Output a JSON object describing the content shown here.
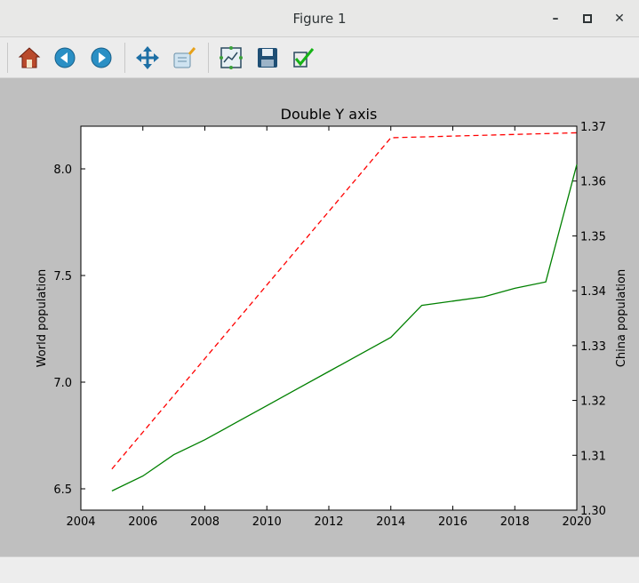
{
  "window": {
    "title": "Figure 1"
  },
  "toolbar": {
    "buttons": [
      "home-icon",
      "back-icon",
      "forward-icon",
      "pan-icon",
      "zoom-icon",
      "configure-subplots-icon",
      "save-icon",
      "edit-axis-icon"
    ]
  },
  "chart_data": {
    "type": "line",
    "title": "Double Y axis",
    "ylabel": "World population",
    "y2label": "China population",
    "xlim": [
      2004,
      2020
    ],
    "ylim": [
      6.4,
      8.2
    ],
    "y2lim": [
      1.3,
      1.37
    ],
    "xticks": [
      "2004",
      "2006",
      "2008",
      "2010",
      "2012",
      "2014",
      "2016",
      "2018",
      "2020"
    ],
    "yticks": [
      "6.5",
      "7.0",
      "7.5",
      "8.0"
    ],
    "y2ticks": [
      "1.30",
      "1.31",
      "1.32",
      "1.33",
      "1.34",
      "1.35",
      "1.36",
      "1.37"
    ],
    "series": [
      {
        "axis": "left",
        "color": "#008000",
        "style": "solid",
        "x": [
          2005,
          2006,
          2007,
          2008,
          2009,
          2010,
          2011,
          2012,
          2013,
          2014,
          2015,
          2016,
          2017,
          2018,
          2019,
          2020
        ],
        "y": [
          6.49,
          6.56,
          6.66,
          6.73,
          6.81,
          6.89,
          6.97,
          7.05,
          7.13,
          7.21,
          7.36,
          7.38,
          7.4,
          7.44,
          7.47,
          8.02
        ]
      },
      {
        "axis": "right",
        "color": "#ff0000",
        "style": "dashed",
        "x": [
          2005,
          2014,
          2020
        ],
        "y": [
          1.3075,
          1.3679,
          1.3688
        ]
      }
    ]
  }
}
